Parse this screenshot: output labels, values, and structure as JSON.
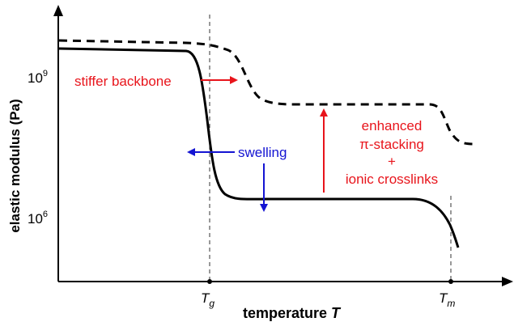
{
  "chart_data": {
    "type": "line",
    "xlabel_text": "temperature",
    "xlabel_var": "T",
    "ylabel": "elastic modulus (Pa)",
    "y_scale": "log",
    "y_ticks": [
      {
        "value": 1000000000,
        "base": "10",
        "exp": "9"
      },
      {
        "value": 1000000,
        "base": "10",
        "exp": "6"
      }
    ],
    "x_ticks": [
      {
        "name": "Tg",
        "main": "T",
        "sub": "g"
      },
      {
        "name": "Tm",
        "main": "T",
        "sub": "m"
      }
    ],
    "series": [
      {
        "style": "dashed",
        "points": [
          [
            0,
            4500000000.0
          ],
          [
            0.33,
            3200000000.0
          ],
          [
            0.44,
            270000000.0
          ],
          [
            0.9,
            240000000.0
          ],
          [
            0.97,
            32000000.0
          ]
        ]
      },
      {
        "style": "solid",
        "points": [
          [
            0,
            2500000000.0
          ],
          [
            0.32,
            2000000000.0
          ],
          [
            0.37,
            25000000.0
          ],
          [
            0.45,
            2200000.0
          ],
          [
            0.9,
            2000000.0
          ],
          [
            0.97,
            50000.0
          ]
        ]
      }
    ],
    "annotations": [
      {
        "id": "stiffer",
        "text": "stiffer backbone",
        "color": "#e8141b"
      },
      {
        "id": "swelling",
        "text": "swelling",
        "color": "#1414d2"
      },
      {
        "id": "enhanced",
        "lines": [
          "enhanced",
          "π-stacking",
          "+",
          "ionic crosslinks"
        ],
        "color": "#e8141b"
      }
    ]
  }
}
